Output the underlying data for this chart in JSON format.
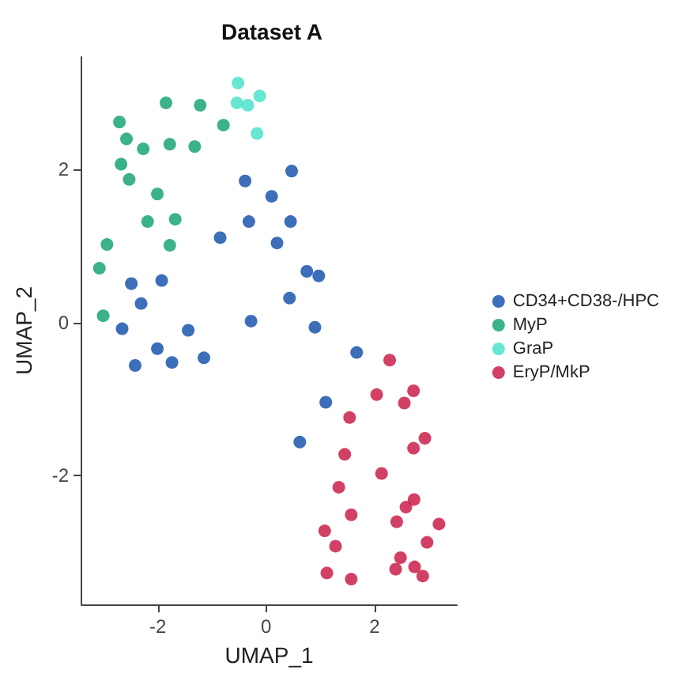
{
  "chart_data": {
    "type": "scatter",
    "title": "Dataset A",
    "xlabel": "UMAP_1",
    "ylabel": "UMAP_2",
    "xlim": [
      -3.41,
      3.52
    ],
    "ylim": [
      -3.68,
      3.47
    ],
    "xticks": [
      -2,
      0,
      2
    ],
    "yticks": [
      -2,
      0,
      2
    ],
    "grid": false,
    "legend": "right",
    "marker": "circle",
    "series": [
      {
        "name": "CD34+CD38-/HPC",
        "color": "#0b4aa8",
        "x": [
          -0.39,
          0.1,
          -0.32,
          -0.85,
          0.2,
          -2.49,
          -1.93,
          -2.31,
          -0.28,
          -2.66,
          -1.44,
          -2.01,
          -2.42,
          -1.74,
          -1.15,
          0.47,
          0.45,
          0.75,
          0.97,
          0.43,
          0.9,
          1.67,
          1.1,
          0.62
        ],
        "values": [
          1.85,
          1.65,
          1.32,
          1.11,
          1.04,
          0.51,
          0.55,
          0.25,
          0.02,
          -0.08,
          -0.1,
          -0.34,
          -0.56,
          -0.52,
          -0.46,
          1.98,
          1.32,
          0.67,
          0.61,
          0.32,
          -0.06,
          -0.39,
          -1.04,
          -1.56
        ]
      },
      {
        "name": "MyP",
        "color": "#0b9f6b",
        "x": [
          -2.71,
          -2.58,
          -2.27,
          -1.85,
          -1.78,
          -1.22,
          -1.32,
          -0.79,
          -2.68,
          -2.53,
          -2.01,
          -2.19,
          -1.68,
          -1.78,
          -2.94,
          -3.08,
          -3.01
        ],
        "values": [
          2.62,
          2.4,
          2.27,
          2.87,
          2.33,
          2.84,
          2.3,
          2.58,
          2.07,
          1.87,
          1.68,
          1.32,
          1.35,
          1.01,
          1.02,
          0.71,
          0.09
        ]
      },
      {
        "name": "GraP",
        "color": "#40e0c8",
        "x": [
          -0.52,
          -0.54,
          -0.34,
          -0.12,
          -0.17
        ],
        "values": [
          3.13,
          2.87,
          2.84,
          2.96,
          2.47
        ]
      },
      {
        "name": "EryP/MkP",
        "color": "#c8103f",
        "x": [
          2.28,
          2.04,
          2.72,
          2.55,
          1.54,
          2.93,
          2.72,
          1.45,
          2.13,
          1.34,
          2.73,
          2.58,
          1.57,
          2.41,
          3.19,
          1.08,
          2.97,
          1.28,
          2.48,
          2.39,
          2.74,
          2.89,
          1.12,
          1.57
        ],
        "values": [
          -0.49,
          -0.94,
          -0.89,
          -1.05,
          -1.24,
          -1.51,
          -1.64,
          -1.72,
          -1.97,
          -2.15,
          -2.31,
          -2.41,
          -2.51,
          -2.6,
          -2.63,
          -2.72,
          -2.87,
          -2.92,
          -3.07,
          -3.22,
          -3.19,
          -3.31,
          -3.27,
          -3.35
        ]
      }
    ]
  }
}
